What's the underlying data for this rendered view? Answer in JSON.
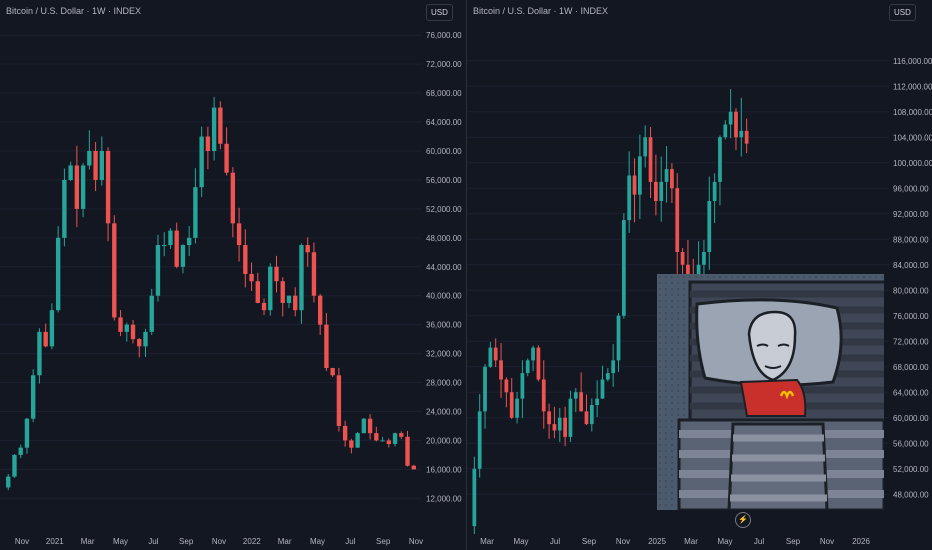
{
  "left": {
    "title": "Bitcoin / U.S. Dollar · 1W · INDEX",
    "currency": "USD",
    "price_labels": [
      "76,000.00",
      "72,000.00",
      "68,000.00",
      "64,000.00",
      "60,000.00",
      "56,000.00",
      "52,000.00",
      "48,000.00",
      "44,000.00",
      "40,000.00",
      "36,000.00",
      "32,000.00",
      "28,000.00",
      "24,000.00",
      "20,000.00",
      "16,000.00",
      "12,000.00"
    ],
    "time_labels": [
      "Nov",
      "2021",
      "Mar",
      "May",
      "Jul",
      "Sep",
      "Nov",
      "2022",
      "Mar",
      "May",
      "Jul",
      "Sep",
      "Nov"
    ]
  },
  "right": {
    "title": "Bitcoin / U.S. Dollar · 1W · INDEX",
    "currency": "USD",
    "price_labels": [
      "116,000.00",
      "112,000.00",
      "108,000.00",
      "104,000.00",
      "100,000.00",
      "96,000.00",
      "92,000.00",
      "88,000.00",
      "84,000.00",
      "80,000.00",
      "76,000.00",
      "72,000.00",
      "68,000.00",
      "64,000.00",
      "60,000.00",
      "56,000.00",
      "52,000.00",
      "48,000.00"
    ],
    "time_labels": [
      "Mar",
      "May",
      "Jul",
      "Sep",
      "Nov",
      "2025",
      "Mar",
      "May",
      "Jul",
      "Sep",
      "Nov",
      "2026"
    ]
  },
  "colors": {
    "up": "#26a69a",
    "down": "#ef5350",
    "bg": "#131722",
    "axis_text": "#b2b5be"
  },
  "icons": {
    "bottom": "lightning-icon"
  },
  "chart_data": [
    {
      "type": "candlestick",
      "title": "Bitcoin / U.S. Dollar · 1W · INDEX",
      "ylim": [
        9000,
        77000
      ],
      "x_range": [
        "2020-10",
        "2022-11"
      ],
      "close_path": [
        13500,
        15000,
        18000,
        19000,
        23000,
        29000,
        35000,
        33000,
        38000,
        48000,
        56000,
        58000,
        52000,
        58000,
        60000,
        56000,
        60000,
        50000,
        37000,
        35000,
        36000,
        34000,
        33000,
        35000,
        40000,
        47000,
        47000,
        49000,
        44000,
        47000,
        48000,
        55000,
        62000,
        60000,
        66000,
        61000,
        57000,
        50000,
        47000,
        43000,
        42000,
        39000,
        38000,
        44000,
        42000,
        39000,
        40000,
        38000,
        47000,
        46000,
        40000,
        36000,
        30000,
        29000,
        22000,
        20000,
        19000,
        21000,
        23000,
        21000,
        20000,
        20000,
        19500,
        21000,
        20500,
        16500,
        16000
      ]
    },
    {
      "type": "candlestick",
      "title": "Bitcoin / U.S. Dollar · 1W · INDEX",
      "ylim": [
        46000,
        118000
      ],
      "x_range": [
        "2024-02",
        "2026-01"
      ],
      "close_path": [
        43000,
        52000,
        61000,
        68000,
        71000,
        69000,
        66000,
        64000,
        60000,
        63000,
        67000,
        69000,
        71000,
        66000,
        61000,
        59000,
        58000,
        60000,
        57000,
        63000,
        64000,
        61000,
        59000,
        62000,
        63000,
        66000,
        67000,
        69000,
        76000,
        91000,
        98000,
        95000,
        101000,
        104000,
        97000,
        94000,
        97000,
        99000,
        96000,
        86000,
        84000,
        82000,
        79000,
        84000,
        86000,
        94000,
        97000,
        104000,
        106000,
        108000,
        104000,
        105000,
        103000
      ]
    }
  ]
}
